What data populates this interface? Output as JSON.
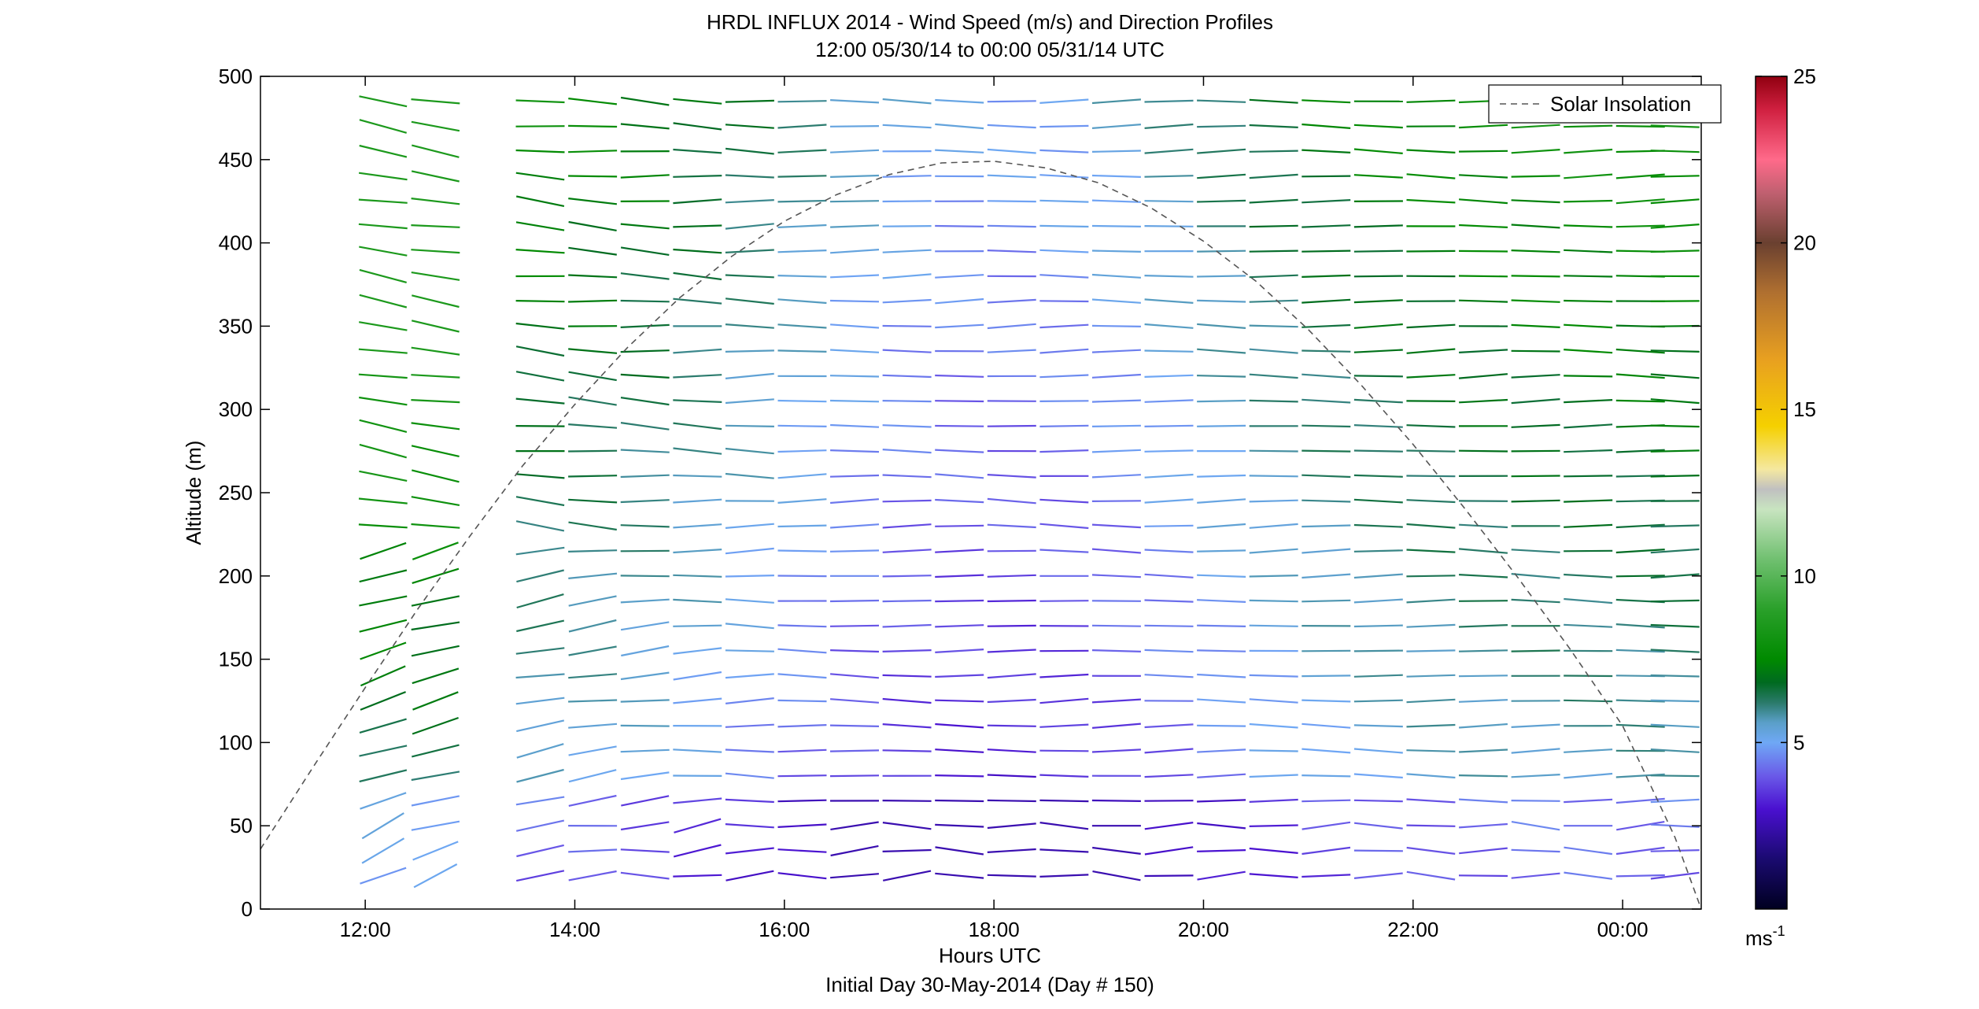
{
  "figure": {
    "title_line1": "HRDL INFLUX 2014 - Wind Speed (m/s) and Direction Profiles",
    "title_line2": "12:00 05/30/14 to 00:00 05/31/14  UTC",
    "xlabel": "Hours UTC",
    "subtitle": "Initial Day 30-May-2014 (Day # 150)",
    "ylabel": "Altitude (m)",
    "colorbar_unit_base": "ms",
    "colorbar_unit_exp": "-1"
  },
  "chart_data": {
    "type": "wind-barb-profile",
    "x_axis": {
      "label": "Hours UTC",
      "range_hours": [
        11.0,
        24.75
      ],
      "ticks": [
        {
          "value": 12,
          "label": "12:00"
        },
        {
          "value": 14,
          "label": "14:00"
        },
        {
          "value": 16,
          "label": "16:00"
        },
        {
          "value": 18,
          "label": "18:00"
        },
        {
          "value": 20,
          "label": "20:00"
        },
        {
          "value": 22,
          "label": "22:00"
        },
        {
          "value": 24,
          "label": "00:00"
        }
      ]
    },
    "y_axis": {
      "label": "Altitude (m)",
      "range": [
        0,
        500
      ],
      "ticks": [
        {
          "value": 0,
          "label": "0"
        },
        {
          "value": 50,
          "label": "50"
        },
        {
          "value": 100,
          "label": "100"
        },
        {
          "value": 150,
          "label": "150"
        },
        {
          "value": 200,
          "label": "200"
        },
        {
          "value": 250,
          "label": "250"
        },
        {
          "value": 300,
          "label": "300"
        },
        {
          "value": 350,
          "label": "350"
        },
        {
          "value": 400,
          "label": "400"
        },
        {
          "value": 450,
          "label": "450"
        },
        {
          "value": 500,
          "label": "500"
        }
      ]
    },
    "colorbar": {
      "range": [
        0,
        25
      ],
      "ticks": [
        {
          "value": 5,
          "label": "5"
        },
        {
          "value": 10,
          "label": "10"
        },
        {
          "value": 15,
          "label": "15"
        },
        {
          "value": 20,
          "label": "20"
        },
        {
          "value": 25,
          "label": "25"
        }
      ],
      "stops": [
        {
          "value": 0,
          "color": "#000020"
        },
        {
          "value": 1.5,
          "color": "#1a0a70"
        },
        {
          "value": 3,
          "color": "#4a10d0"
        },
        {
          "value": 4,
          "color": "#6a5ae8"
        },
        {
          "value": 5,
          "color": "#6fa8f5"
        },
        {
          "value": 5.6,
          "color": "#5a9fc8"
        },
        {
          "value": 6.2,
          "color": "#2a7a6a"
        },
        {
          "value": 6.8,
          "color": "#006a20"
        },
        {
          "value": 7.5,
          "color": "#008a00"
        },
        {
          "value": 9,
          "color": "#2aa02a"
        },
        {
          "value": 10.5,
          "color": "#70c070"
        },
        {
          "value": 12,
          "color": "#c8e4c0"
        },
        {
          "value": 12.6,
          "color": "#c0c0c0"
        },
        {
          "value": 13.2,
          "color": "#f5e8a0"
        },
        {
          "value": 14.5,
          "color": "#f5d000"
        },
        {
          "value": 16.5,
          "color": "#e8a020"
        },
        {
          "value": 18.5,
          "color": "#b07030"
        },
        {
          "value": 20,
          "color": "#6a4030"
        },
        {
          "value": 21.5,
          "color": "#c06070"
        },
        {
          "value": 22.5,
          "color": "#ff6a8a"
        },
        {
          "value": 24,
          "color": "#d02040"
        },
        {
          "value": 25,
          "color": "#900010"
        }
      ]
    },
    "solar_insolation": {
      "name": "Solar Insolation",
      "style": "dashed",
      "peak_hour": 17.75,
      "peak_altitude": 450,
      "points": [
        [
          11.0,
          36
        ],
        [
          11.5,
          85
        ],
        [
          12.0,
          133
        ],
        [
          12.5,
          180
        ],
        [
          13.0,
          224
        ],
        [
          13.5,
          266
        ],
        [
          14.0,
          303
        ],
        [
          14.5,
          337
        ],
        [
          15.0,
          367
        ],
        [
          15.5,
          392
        ],
        [
          16.0,
          413
        ],
        [
          16.5,
          429
        ],
        [
          17.0,
          441
        ],
        [
          17.5,
          448
        ],
        [
          18.0,
          449
        ],
        [
          18.5,
          445
        ],
        [
          19.0,
          436
        ],
        [
          19.5,
          421
        ],
        [
          20.0,
          401
        ],
        [
          20.5,
          377
        ],
        [
          21.0,
          348
        ],
        [
          21.5,
          315
        ],
        [
          22.0,
          279
        ],
        [
          22.5,
          240
        ],
        [
          23.0,
          199
        ],
        [
          23.5,
          156
        ],
        [
          24.0,
          110
        ],
        [
          24.5,
          43
        ],
        [
          24.75,
          0
        ]
      ]
    },
    "barbs": {
      "description": "Wind direction sticks colored by speed",
      "columns_hours": [
        12.17,
        12.67,
        13.17,
        13.67,
        14.17,
        14.67,
        15.17,
        15.67,
        16.17,
        16.67,
        17.17,
        17.67,
        18.17,
        18.67,
        19.17,
        19.67,
        20.17,
        20.67,
        21.17,
        21.67,
        22.17,
        22.67,
        23.17,
        23.67,
        24.17,
        24.5
      ],
      "missing_columns": [
        2
      ],
      "altitudes": [
        20,
        35,
        50,
        65,
        80,
        95,
        110,
        125,
        140,
        155,
        170,
        185,
        200,
        215,
        230,
        245,
        260,
        275,
        290,
        305,
        320,
        335,
        350,
        365,
        380,
        395,
        410,
        425,
        440,
        455,
        470,
        485
      ]
    },
    "legend": {
      "entries": [
        "Solar Insolation"
      ],
      "placement": "top-right"
    }
  }
}
